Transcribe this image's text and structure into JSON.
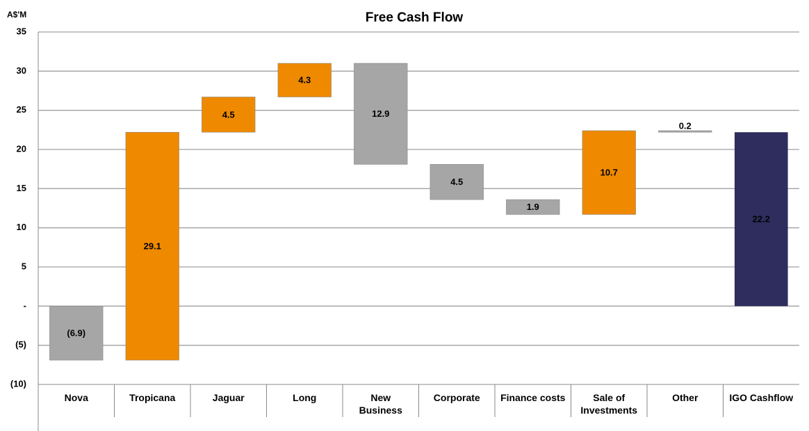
{
  "chart_data": {
    "type": "waterfall",
    "title": "Free Cash Flow",
    "y_label": "A$'M",
    "categories": [
      "Nova",
      "Tropicana",
      "Jaguar",
      "Long",
      "New\nBusiness",
      "Corporate",
      "Finance costs",
      "Sale of\nInvestments",
      "Other",
      "IGO Cashflow"
    ],
    "values": [
      -6.9,
      29.1,
      4.5,
      4.3,
      -12.9,
      -4.5,
      -1.9,
      10.7,
      -0.2,
      22.2
    ],
    "value_labels": [
      "(6.9)",
      "29.1",
      "4.5",
      "4.3",
      "12.9",
      "4.5",
      "1.9",
      "10.7",
      "0.2",
      "22.2"
    ],
    "totals": [
      false,
      false,
      false,
      false,
      false,
      false,
      false,
      false,
      false,
      true
    ],
    "increase_color": "#ef8a00",
    "decrease_color": "#a6a6a6",
    "total_color": "#2e2d5e",
    "ylim": [
      -10,
      35
    ],
    "yticks": [
      {
        "value": -10,
        "label": "(10)"
      },
      {
        "value": -5,
        "label": "(5)"
      },
      {
        "value": 0,
        "label": "-"
      },
      5,
      10,
      15,
      20,
      25,
      30,
      35
    ],
    "grid": true
  }
}
